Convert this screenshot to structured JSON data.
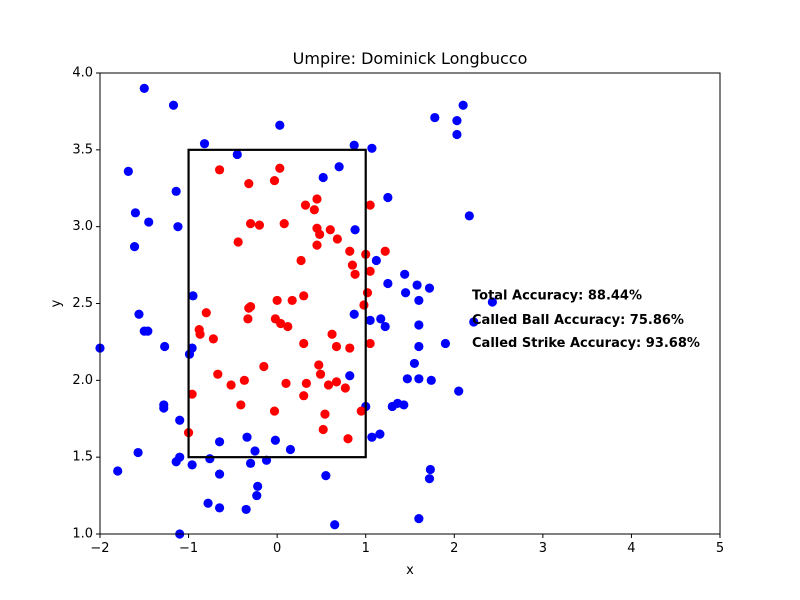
{
  "chart_data": {
    "type": "scatter",
    "title": "Umpire: Dominick Longbucco",
    "xlabel": "x",
    "ylabel": "y",
    "xlim": [
      -2,
      5
    ],
    "ylim": [
      1.0,
      4.0
    ],
    "xticks": [
      "−2",
      "−1",
      "0",
      "1",
      "2",
      "3",
      "4",
      "5"
    ],
    "yticks": [
      "1.0",
      "1.5",
      "2.0",
      "2.5",
      "3.0",
      "3.5",
      "4.0"
    ],
    "strike_zone": {
      "x": [
        -1,
        1
      ],
      "y": [
        1.5,
        3.5
      ],
      "color": "#000000"
    },
    "annotations": [
      {
        "text": "Total Accuracy: 88.44%",
        "x": 2.2,
        "y": 2.55
      },
      {
        "text": "Called Ball Accuracy: 75.86%",
        "x": 2.2,
        "y": 2.39
      },
      {
        "text": "Called Strike Accuracy: 93.68%",
        "x": 2.2,
        "y": 2.24
      }
    ],
    "series": [
      {
        "color": "#0000ff",
        "points": [
          [
            -1.5,
            3.9
          ],
          [
            -1.17,
            3.79
          ],
          [
            -0.82,
            3.54
          ],
          [
            -0.45,
            3.47
          ],
          [
            0.03,
            3.66
          ],
          [
            -1.68,
            3.36
          ],
          [
            -1.14,
            3.23
          ],
          [
            -1.6,
            3.09
          ],
          [
            -1.45,
            3.03
          ],
          [
            -1.12,
            3.0
          ],
          [
            -1.61,
            2.87
          ],
          [
            0.87,
            3.53
          ],
          [
            1.07,
            3.51
          ],
          [
            0.7,
            3.39
          ],
          [
            0.52,
            3.32
          ],
          [
            1.25,
            3.19
          ],
          [
            0.88,
            2.98
          ],
          [
            1.12,
            2.78
          ],
          [
            1.25,
            2.63
          ],
          [
            1.44,
            2.69
          ],
          [
            1.58,
            2.62
          ],
          [
            1.72,
            2.6
          ],
          [
            1.45,
            2.57
          ],
          [
            1.6,
            2.52
          ],
          [
            1.78,
            3.71
          ],
          [
            2.03,
            3.69
          ],
          [
            2.1,
            3.79
          ],
          [
            2.03,
            3.6
          ],
          [
            2.17,
            3.07
          ],
          [
            2.43,
            2.51
          ],
          [
            2.22,
            2.38
          ],
          [
            -0.95,
            2.55
          ],
          [
            -1.56,
            2.43
          ],
          [
            -1.5,
            2.32
          ],
          [
            -1.46,
            2.32
          ],
          [
            -1.27,
            2.22
          ],
          [
            -2.0,
            2.21
          ],
          [
            -0.96,
            2.21
          ],
          [
            -0.99,
            2.17
          ],
          [
            0.87,
            2.43
          ],
          [
            1.05,
            2.39
          ],
          [
            1.17,
            2.4
          ],
          [
            1.22,
            2.35
          ],
          [
            1.6,
            2.36
          ],
          [
            1.6,
            2.22
          ],
          [
            1.9,
            2.24
          ],
          [
            1.55,
            2.11
          ],
          [
            1.47,
            2.01
          ],
          [
            1.6,
            2.01
          ],
          [
            1.74,
            2.0
          ],
          [
            2.05,
            1.93
          ],
          [
            0.82,
            2.03
          ],
          [
            1.0,
            1.83
          ],
          [
            1.3,
            1.83
          ],
          [
            1.36,
            1.85
          ],
          [
            1.43,
            1.84
          ],
          [
            -1.28,
            1.84
          ],
          [
            -1.28,
            1.82
          ],
          [
            -1.1,
            1.74
          ],
          [
            -0.34,
            1.63
          ],
          [
            -0.02,
            1.61
          ],
          [
            -0.65,
            1.6
          ],
          [
            -1.57,
            1.53
          ],
          [
            -0.25,
            1.54
          ],
          [
            0.15,
            1.55
          ],
          [
            -1.1,
            1.5
          ],
          [
            -1.14,
            1.47
          ],
          [
            -0.76,
            1.49
          ],
          [
            -0.3,
            1.46
          ],
          [
            -0.12,
            1.48
          ],
          [
            -0.96,
            1.45
          ],
          [
            -1.8,
            1.41
          ],
          [
            -0.65,
            1.39
          ],
          [
            1.07,
            1.63
          ],
          [
            1.16,
            1.65
          ],
          [
            0.55,
            1.38
          ],
          [
            1.73,
            1.42
          ],
          [
            1.72,
            1.36
          ],
          [
            -0.78,
            1.2
          ],
          [
            -0.22,
            1.31
          ],
          [
            -0.23,
            1.25
          ],
          [
            -0.65,
            1.17
          ],
          [
            -0.35,
            1.16
          ],
          [
            1.6,
            1.1
          ],
          [
            0.65,
            1.06
          ],
          [
            -1.1,
            1.0
          ]
        ]
      },
      {
        "color": "#ff0000",
        "points": [
          [
            -0.65,
            3.37
          ],
          [
            0.03,
            3.38
          ],
          [
            -0.03,
            3.3
          ],
          [
            -0.32,
            3.28
          ],
          [
            0.45,
            3.18
          ],
          [
            0.32,
            3.14
          ],
          [
            0.42,
            3.11
          ],
          [
            1.05,
            3.14
          ],
          [
            -0.3,
            3.02
          ],
          [
            -0.2,
            3.01
          ],
          [
            0.08,
            3.02
          ],
          [
            0.45,
            2.99
          ],
          [
            0.6,
            2.98
          ],
          [
            0.48,
            2.95
          ],
          [
            0.68,
            2.92
          ],
          [
            -0.44,
            2.9
          ],
          [
            0.45,
            2.88
          ],
          [
            0.82,
            2.84
          ],
          [
            1.0,
            2.82
          ],
          [
            1.22,
            2.84
          ],
          [
            0.27,
            2.78
          ],
          [
            0.85,
            2.75
          ],
          [
            1.05,
            2.71
          ],
          [
            0.88,
            2.69
          ],
          [
            1.02,
            2.57
          ],
          [
            0.3,
            2.55
          ],
          [
            0.0,
            2.52
          ],
          [
            0.17,
            2.52
          ],
          [
            0.98,
            2.49
          ],
          [
            -0.3,
            2.48
          ],
          [
            -0.32,
            2.47
          ],
          [
            -0.8,
            2.44
          ],
          [
            -0.33,
            2.4
          ],
          [
            -0.02,
            2.4
          ],
          [
            0.04,
            2.37
          ],
          [
            0.12,
            2.35
          ],
          [
            -0.88,
            2.33
          ],
          [
            -0.87,
            2.3
          ],
          [
            0.62,
            2.3
          ],
          [
            -0.72,
            2.27
          ],
          [
            0.3,
            2.24
          ],
          [
            0.67,
            2.22
          ],
          [
            0.82,
            2.21
          ],
          [
            1.05,
            2.24
          ],
          [
            0.47,
            2.1
          ],
          [
            -0.15,
            2.09
          ],
          [
            -0.67,
            2.04
          ],
          [
            0.49,
            2.04
          ],
          [
            -0.37,
            2.0
          ],
          [
            -0.52,
            1.97
          ],
          [
            0.1,
            1.98
          ],
          [
            0.33,
            1.98
          ],
          [
            0.58,
            1.97
          ],
          [
            0.67,
            1.99
          ],
          [
            0.77,
            1.95
          ],
          [
            -0.96,
            1.91
          ],
          [
            0.3,
            1.9
          ],
          [
            -0.41,
            1.84
          ],
          [
            -0.03,
            1.8
          ],
          [
            0.95,
            1.8
          ],
          [
            0.54,
            1.78
          ],
          [
            0.52,
            1.68
          ],
          [
            -1.0,
            1.66
          ],
          [
            0.8,
            1.62
          ]
        ]
      }
    ]
  }
}
